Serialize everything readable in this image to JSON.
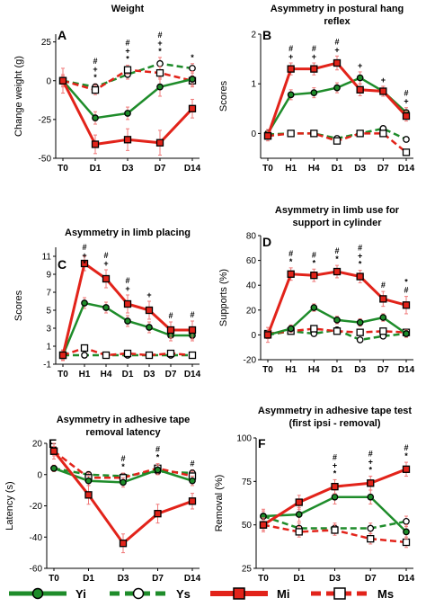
{
  "legend": [
    {
      "name": "Yi",
      "color": "#1e8c2a",
      "style": "solid",
      "marker": "filled-circle"
    },
    {
      "name": "Ys",
      "color": "#1e8c2a",
      "style": "dashed",
      "marker": "open-circle"
    },
    {
      "name": "Mi",
      "color": "#e2231a",
      "style": "solid",
      "marker": "filled-square"
    },
    {
      "name": "Ms",
      "color": "#e2231a",
      "style": "dashed",
      "marker": "open-square"
    }
  ],
  "chart_data": [
    {
      "type": "line",
      "letter": "A",
      "title": [
        "Weight"
      ],
      "ylabel": "Change weight  (g)",
      "ylim": [
        -50,
        30
      ],
      "yticks": [
        -50,
        -25,
        0,
        25
      ],
      "categories": [
        "T0",
        "D1",
        "D3",
        "D7",
        "D14"
      ],
      "series": [
        {
          "name": "Yi",
          "values": [
            0,
            -24,
            -21,
            -4,
            1
          ],
          "errors": [
            4,
            4,
            4,
            6,
            5
          ]
        },
        {
          "name": "Ys",
          "values": [
            0,
            -4,
            4,
            11,
            8
          ],
          "errors": [
            3,
            2,
            3,
            4,
            3
          ]
        },
        {
          "name": "Mi",
          "values": [
            0,
            -41,
            -38,
            -40,
            -18
          ],
          "errors": [
            8,
            6,
            7,
            8,
            6
          ]
        },
        {
          "name": "Ms",
          "values": [
            0,
            -6,
            7,
            5,
            0
          ],
          "errors": [
            3,
            3,
            3,
            4,
            3
          ]
        }
      ],
      "annotations": [
        {
          "category": "D1",
          "text": [
            "#",
            "+",
            "*"
          ]
        },
        {
          "category": "D3",
          "text": [
            "#",
            "+",
            "*"
          ]
        },
        {
          "category": "D7",
          "text": [
            "#",
            "+",
            "*"
          ]
        },
        {
          "category": "D14",
          "text": [
            "*"
          ]
        }
      ]
    },
    {
      "type": "line",
      "letter": "B",
      "title": [
        "Asymmetry in postural hang",
        "reflex"
      ],
      "ylabel": "Scores",
      "ylim": [
        -0.5,
        2
      ],
      "yticks": [
        0,
        1,
        2
      ],
      "categories": [
        "T0",
        "H1",
        "H4",
        "D1",
        "D3",
        "D7",
        "D14"
      ],
      "series": [
        {
          "name": "Yi",
          "values": [
            0,
            0.78,
            0.82,
            0.92,
            1.12,
            0.85,
            0.42
          ],
          "errors": [
            0.08,
            0.1,
            0.1,
            0.1,
            0.12,
            0.1,
            0.1
          ]
        },
        {
          "name": "Ys",
          "values": [
            -0.02,
            0,
            0,
            -0.1,
            0,
            0.1,
            -0.12
          ],
          "errors": [
            0.05,
            0.05,
            0.05,
            0.05,
            0.05,
            0.05,
            0.05
          ]
        },
        {
          "name": "Mi",
          "values": [
            -0.05,
            1.3,
            1.3,
            1.42,
            0.88,
            0.85,
            0.35
          ],
          "errors": [
            0.1,
            0.12,
            0.12,
            0.14,
            0.12,
            0.1,
            0.1
          ]
        },
        {
          "name": "Ms",
          "values": [
            -0.05,
            0,
            0,
            -0.15,
            0,
            0,
            -0.38
          ],
          "errors": [
            0.05,
            0.05,
            0.05,
            0.05,
            0.05,
            0.05,
            0.05
          ]
        }
      ],
      "annotations": [
        {
          "category": "H1",
          "text": [
            "#",
            "+"
          ]
        },
        {
          "category": "H4",
          "text": [
            "#",
            "+"
          ]
        },
        {
          "category": "D1",
          "text": [
            "#",
            "+"
          ]
        },
        {
          "category": "D3",
          "text": [
            "+"
          ]
        },
        {
          "category": "D7",
          "text": [
            "+"
          ]
        },
        {
          "category": "D14",
          "text": [
            "#",
            "+"
          ]
        }
      ]
    },
    {
      "type": "line",
      "letter": "C",
      "title": [
        "Asymmetry in limb placing"
      ],
      "ylabel": "Scores",
      "ylim": [
        -1,
        12
      ],
      "yticks": [
        -1,
        1,
        3,
        5,
        7,
        9,
        11
      ],
      "categories": [
        "T0",
        "H1",
        "H4",
        "D1",
        "D3",
        "D7",
        "D14"
      ],
      "series": [
        {
          "name": "Yi",
          "values": [
            0,
            5.8,
            5.3,
            3.8,
            3.1,
            2.2,
            2.2
          ],
          "errors": [
            0.5,
            0.6,
            0.6,
            0.6,
            0.6,
            0.6,
            0.6
          ]
        },
        {
          "name": "Ys",
          "values": [
            0,
            0,
            0,
            0,
            0,
            0,
            0
          ],
          "errors": [
            0.2,
            0.2,
            0.2,
            0.2,
            0.2,
            0.2,
            0.2
          ]
        },
        {
          "name": "Mi",
          "values": [
            0,
            10.2,
            8.5,
            5.7,
            5.0,
            2.8,
            2.8
          ],
          "errors": [
            0.6,
            0.8,
            1.0,
            1.0,
            1.0,
            0.9,
            1.0
          ]
        },
        {
          "name": "Ms",
          "values": [
            0,
            0.8,
            0,
            0.2,
            0,
            0.2,
            0
          ],
          "errors": [
            0.2,
            0.2,
            0.2,
            0.2,
            0.2,
            0.2,
            0.2
          ]
        }
      ],
      "annotations": [
        {
          "category": "H1",
          "text": [
            "#",
            "+",
            "*"
          ]
        },
        {
          "category": "H4",
          "text": [
            "#",
            "+"
          ]
        },
        {
          "category": "D1",
          "text": [
            "#",
            "+"
          ]
        },
        {
          "category": "D3",
          "text": [
            "+"
          ]
        },
        {
          "category": "D7",
          "text": [
            "#"
          ]
        },
        {
          "category": "D14",
          "text": [
            "#"
          ]
        }
      ]
    },
    {
      "type": "line",
      "letter": "D",
      "title": [
        "Asymmetry in limb use for",
        "support in cylinder"
      ],
      "ylabel": "Supports (%)",
      "ylim": [
        -20,
        80
      ],
      "yticks": [
        -20,
        0,
        20,
        40,
        60,
        80
      ],
      "categories": [
        "T0",
        "H1",
        "H4",
        "D1",
        "D3",
        "D7",
        "D14"
      ],
      "series": [
        {
          "name": "Yi",
          "values": [
            0,
            5,
            22,
            12,
            10,
            14,
            1
          ],
          "errors": [
            3,
            3,
            3,
            3,
            3,
            3,
            3
          ]
        },
        {
          "name": "Ys",
          "values": [
            0,
            3,
            1,
            4,
            -4,
            -1,
            1
          ],
          "errors": [
            2,
            2,
            2,
            2,
            2,
            2,
            2
          ]
        },
        {
          "name": "Mi",
          "values": [
            0,
            49,
            48,
            51,
            47,
            29,
            24
          ],
          "errors": [
            6,
            5,
            5,
            5,
            5,
            6,
            7
          ]
        },
        {
          "name": "Ms",
          "values": [
            1,
            3,
            5,
            3,
            2,
            3,
            2
          ],
          "errors": [
            2,
            2,
            2,
            2,
            2,
            2,
            2
          ]
        }
      ],
      "annotations": [
        {
          "category": "H1",
          "text": [
            "#",
            "*"
          ]
        },
        {
          "category": "H4",
          "text": [
            "#",
            "*"
          ]
        },
        {
          "category": "D1",
          "text": [
            "#",
            "*"
          ]
        },
        {
          "category": "D3",
          "text": [
            "#",
            "+",
            "*"
          ]
        },
        {
          "category": "D7",
          "text": [
            "#"
          ]
        },
        {
          "category": "D14",
          "text": [
            "*",
            "#"
          ]
        }
      ]
    },
    {
      "type": "line",
      "letter": "E",
      "title": [
        "Asymmetry in adhesive tape",
        "removal  latency"
      ],
      "ylabel": "Latency (s)",
      "ylim": [
        -60,
        20
      ],
      "yticks": [
        -60,
        -40,
        -20,
        0,
        20
      ],
      "categories": [
        "T0",
        "D1",
        "D3",
        "D7",
        "D14"
      ],
      "series": [
        {
          "name": "Yi",
          "values": [
            4,
            -4,
            -5,
            3,
            -4
          ],
          "errors": [
            2,
            3,
            3,
            3,
            3
          ]
        },
        {
          "name": "Ys",
          "values": [
            4,
            0,
            -1,
            2,
            1
          ],
          "errors": [
            2,
            2,
            2,
            2,
            2
          ]
        },
        {
          "name": "Mi",
          "values": [
            15,
            -13,
            -44,
            -25,
            -17
          ],
          "errors": [
            5,
            6,
            6,
            6,
            5
          ]
        },
        {
          "name": "Ms",
          "values": [
            15,
            -2,
            -2,
            4,
            -1
          ],
          "errors": [
            3,
            3,
            3,
            3,
            3
          ]
        }
      ],
      "annotations": [
        {
          "category": "D3",
          "text": [
            "#",
            "*"
          ]
        },
        {
          "category": "D7",
          "text": [
            "#",
            "*"
          ]
        },
        {
          "category": "D14",
          "text": [
            "#"
          ]
        }
      ]
    },
    {
      "type": "line",
      "letter": "F",
      "title": [
        "Asymmetry in adhesive tape test",
        "(first ipsi - removal)"
      ],
      "ylabel": "Removal (%)",
      "ylim": [
        25,
        100
      ],
      "yticks": [
        25,
        50,
        75,
        100
      ],
      "categories": [
        "T0",
        "D1",
        "D3",
        "D7",
        "D14"
      ],
      "series": [
        {
          "name": "Yi",
          "values": [
            55,
            56,
            66,
            66,
            46
          ],
          "errors": [
            4,
            4,
            4,
            4,
            4
          ]
        },
        {
          "name": "Ys",
          "values": [
            55,
            48,
            48,
            48,
            52
          ],
          "errors": [
            3,
            3,
            3,
            3,
            3
          ]
        },
        {
          "name": "Mi",
          "values": [
            50,
            63,
            72,
            74,
            82
          ],
          "errors": [
            4,
            4,
            4,
            4,
            4
          ]
        },
        {
          "name": "Ms",
          "values": [
            50,
            46,
            47,
            42,
            40
          ],
          "errors": [
            3,
            3,
            3,
            3,
            3
          ]
        }
      ],
      "annotations": [
        {
          "category": "D3",
          "text": [
            "#",
            "+",
            "*"
          ]
        },
        {
          "category": "D7",
          "text": [
            "#",
            "+",
            "*"
          ]
        },
        {
          "category": "D14",
          "text": [
            "#",
            "*"
          ]
        }
      ]
    }
  ]
}
